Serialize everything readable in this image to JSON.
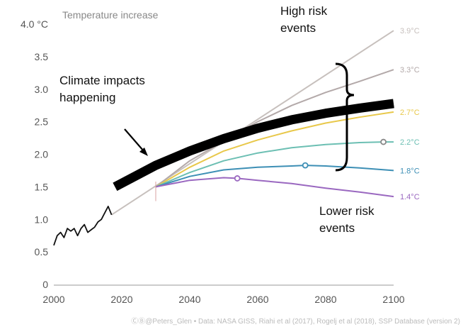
{
  "chart_data": {
    "type": "line",
    "title": "Temperature increase",
    "xlim": [
      2000,
      2100
    ],
    "ylim": [
      0,
      4.0
    ],
    "x_ticks": [
      "2000",
      "2020",
      "2040",
      "2060",
      "2080",
      "2100"
    ],
    "y_ticks": [
      "0",
      "0.5",
      "1.0",
      "1.5",
      "2.0",
      "2.5",
      "3.0",
      "3.5",
      "4.0 °C"
    ],
    "grid": false,
    "observed": {
      "x": [
        2000,
        2001,
        2002,
        2003,
        2004,
        2005,
        2006,
        2007,
        2008,
        2009,
        2010,
        2011,
        2012,
        2013,
        2014,
        2015,
        2016,
        2017
      ],
      "y": [
        0.6,
        0.75,
        0.8,
        0.72,
        0.86,
        0.82,
        0.86,
        0.75,
        0.86,
        0.92,
        0.8,
        0.84,
        0.88,
        0.96,
        1.0,
        1.1,
        1.2,
        1.07
      ]
    },
    "series": [
      {
        "label": "3.9°C",
        "color": "#c7c0bd",
        "x": [
          2017,
          2100
        ],
        "y": [
          1.07,
          3.9
        ]
      },
      {
        "label": "3.3°C",
        "color": "#b3a9a9",
        "x": [
          2030,
          2040,
          2050,
          2060,
          2070,
          2080,
          2090,
          2100
        ],
        "y": [
          1.5,
          1.9,
          2.2,
          2.5,
          2.75,
          2.95,
          3.12,
          3.3
        ]
      },
      {
        "label": "2.7°C",
        "color": "#e8c84a",
        "x": [
          2030,
          2040,
          2050,
          2060,
          2070,
          2080,
          2090,
          2100
        ],
        "y": [
          1.5,
          1.8,
          2.05,
          2.22,
          2.36,
          2.48,
          2.57,
          2.65
        ]
      },
      {
        "label": "2.2°C",
        "color": "#6cbfb3",
        "x": [
          2030,
          2040,
          2050,
          2060,
          2070,
          2080,
          2090,
          2097,
          2100
        ],
        "y": [
          1.5,
          1.72,
          1.9,
          2.02,
          2.1,
          2.15,
          2.18,
          2.19,
          2.19
        ]
      },
      {
        "label": "1.8°C",
        "color": "#3d8fb5",
        "x": [
          2030,
          2040,
          2050,
          2060,
          2070,
          2074,
          2080,
          2090,
          2100
        ],
        "y": [
          1.5,
          1.66,
          1.76,
          1.8,
          1.82,
          1.83,
          1.82,
          1.79,
          1.75
        ]
      },
      {
        "label": "1.4°C",
        "color": "#9a68c0",
        "x": [
          2030,
          2040,
          2050,
          2054,
          2060,
          2070,
          2080,
          2090,
          2100
        ],
        "y": [
          1.5,
          1.6,
          1.64,
          1.63,
          1.6,
          1.55,
          1.48,
          1.42,
          1.35
        ]
      }
    ],
    "markers": [
      {
        "x": 2054,
        "y": 1.63,
        "color": "#9a68c0"
      },
      {
        "x": 2074,
        "y": 1.83,
        "color": "#3d8fb5"
      },
      {
        "x": 2097,
        "y": 2.19,
        "color": "#888888"
      }
    ],
    "overlay": {
      "color": "#000000",
      "x": [
        2018,
        2030,
        2040,
        2050,
        2060,
        2070,
        2080,
        2090,
        2100
      ],
      "y": [
        1.5,
        1.83,
        2.05,
        2.24,
        2.4,
        2.53,
        2.63,
        2.71,
        2.78
      ]
    },
    "annotations": [
      {
        "lines": [
          "High risk",
          "events"
        ]
      },
      {
        "lines": [
          "Climate impacts",
          "happening"
        ]
      },
      {
        "lines": [
          "Lower risk",
          "events"
        ]
      }
    ],
    "footer": "ⒸⒷ@Peters_Glen • Data: NASA GISS, Riahi et al (2017), Rogelj et al (2018), SSP Database (version 2)"
  }
}
